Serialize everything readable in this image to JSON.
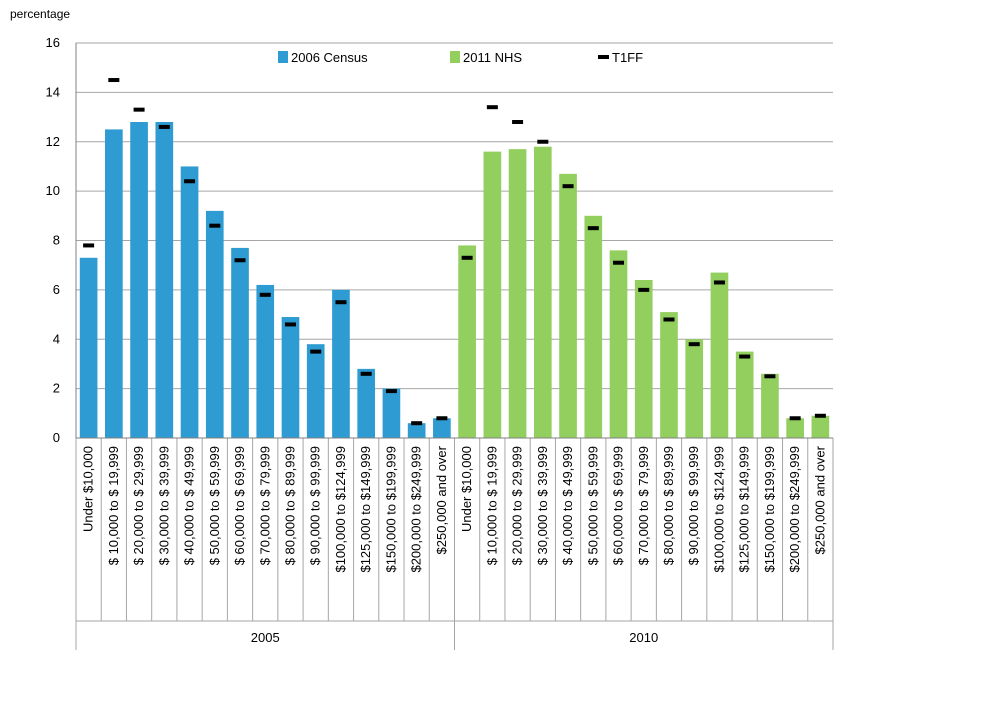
{
  "chart_data": {
    "type": "bar",
    "ylabel": "percentage",
    "ylim": [
      0,
      16
    ],
    "yticks": [
      "0",
      "2",
      "4",
      "6",
      "8",
      "10",
      "12",
      "14",
      "16"
    ],
    "grid": true,
    "legend_position": "top",
    "groups": [
      {
        "label": "2005",
        "series_name": "2006 Census",
        "color": "#2e9bd2",
        "categories": [
          "Under $10,000",
          "$ 10,000 to $ 19,999",
          "$ 20,000 to $ 29,999",
          "$ 30,000 to $ 39,999",
          "$ 40,000 to $ 49,999",
          "$ 50,000 to $ 59,999",
          "$ 60,000 to $ 69,999",
          "$ 70,000 to $ 79,999",
          "$ 80,000 to $ 89,999",
          "$ 90,000 to $ 99,999",
          "$100,000 to $124,999",
          "$125,000 to $149,999",
          "$150,000 to $199,999",
          "$200,000 to $249,999",
          "$250,000 and over"
        ],
        "values": [
          7.3,
          12.5,
          12.8,
          12.8,
          11.0,
          9.2,
          7.7,
          6.2,
          4.9,
          3.8,
          6.0,
          2.8,
          2.0,
          0.6,
          0.8
        ],
        "t1ff": [
          7.8,
          14.5,
          13.3,
          12.6,
          10.4,
          8.6,
          7.2,
          5.8,
          4.6,
          3.5,
          5.5,
          2.6,
          1.9,
          0.6,
          0.8
        ]
      },
      {
        "label": "2010",
        "series_name": "2011 NHS",
        "color": "#92cf5f",
        "categories": [
          "Under $10,000",
          "$ 10,000 to $ 19,999",
          "$ 20,000 to $ 29,999",
          "$ 30,000 to $ 39,999",
          "$ 40,000 to $ 49,999",
          "$ 50,000 to $ 59,999",
          "$ 60,000 to $ 69,999",
          "$ 70,000 to $ 79,999",
          "$ 80,000 to $ 89,999",
          "$ 90,000 to $ 99,999",
          "$100,000 to $124,999",
          "$125,000 to $149,999",
          "$150,000 to $199,999",
          "$200,000 to $249,999",
          "$250,000 and over"
        ],
        "values": [
          7.8,
          11.6,
          11.7,
          11.8,
          10.7,
          9.0,
          7.6,
          6.4,
          5.1,
          4.0,
          6.7,
          3.5,
          2.6,
          0.8,
          0.9
        ],
        "t1ff": [
          7.3,
          13.4,
          12.8,
          12.0,
          10.2,
          8.5,
          7.1,
          6.0,
          4.8,
          3.8,
          6.3,
          3.3,
          2.5,
          0.8,
          0.9
        ]
      }
    ],
    "legend": [
      {
        "label": "2006 Census",
        "color": "#2e9bd2",
        "marker": "box"
      },
      {
        "label": "2011 NHS",
        "color": "#92cf5f",
        "marker": "box"
      },
      {
        "label": "T1FF",
        "color": "#000000",
        "marker": "dash"
      }
    ]
  }
}
